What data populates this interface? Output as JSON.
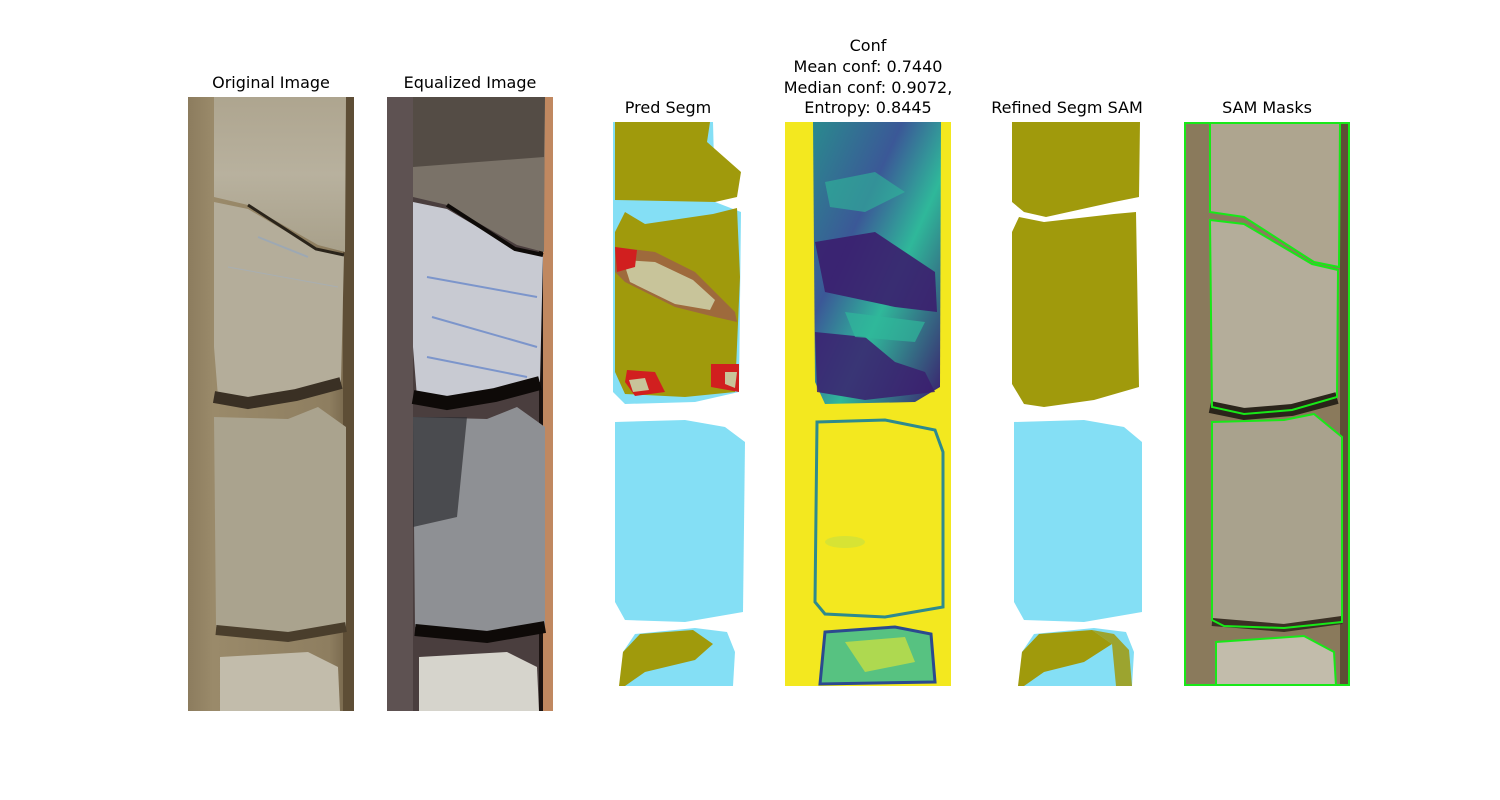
{
  "panels": [
    {
      "id": "original",
      "title": "Original Image"
    },
    {
      "id": "equalized",
      "title": "Equalized Image"
    },
    {
      "id": "pred_segm",
      "title": "Pred Segm"
    },
    {
      "id": "conf",
      "title": "Conf",
      "lines": [
        "Mean conf: 0.7440",
        "Median conf: 0.9072,",
        "Entropy: 0.8445"
      ]
    },
    {
      "id": "refined",
      "title": "Refined Segm SAM"
    },
    {
      "id": "sam_masks",
      "title": "SAM Masks"
    }
  ],
  "colors": {
    "background": "#ffffff",
    "rock_tray": "#8a7a5c",
    "rock_core": "#b0a892",
    "class_olive": "#a09a0c",
    "class_cyan": "#84dff5",
    "class_red": "#d11f1f",
    "class_brown": "#9e6a3c",
    "class_beige": "#c8c49a",
    "conf_yellow": "#f3e81f",
    "conf_dark": "#3b1e6e",
    "sam_outline": "#18e818"
  }
}
